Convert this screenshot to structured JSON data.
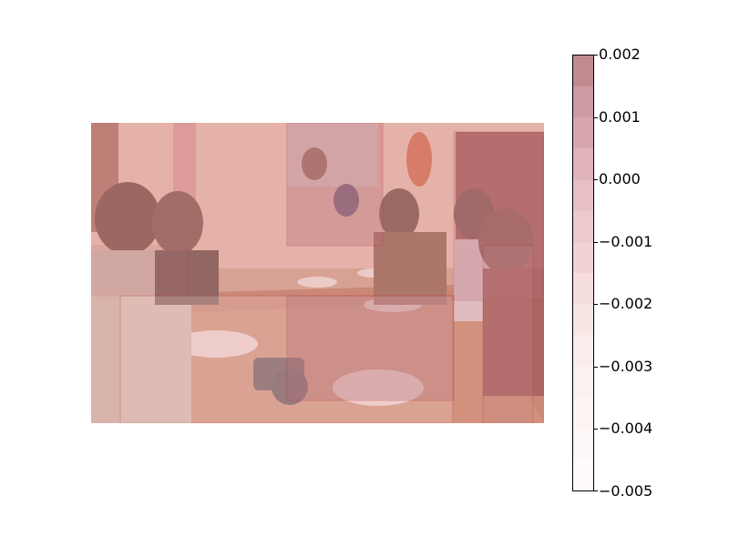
{
  "colorbar": {
    "ticks": [
      "0.002",
      "0.001",
      "0.000",
      "−0.001",
      "−0.002",
      "−0.003",
      "−0.004",
      "−0.005"
    ],
    "tick_values": [
      0.002,
      0.001,
      0.0,
      -0.001,
      -0.002,
      -0.003,
      -0.004,
      -0.005
    ],
    "range": [
      -0.005,
      0.002
    ],
    "steps": [
      "#c08a8f",
      "#cc9aa0",
      "#d7a7ad",
      "#e0b4b9",
      "#e8c0c4",
      "#edc9cc",
      "#f1d3d4",
      "#f5dddd",
      "#f7e6e4",
      "#f9ecea",
      "#fbf1ef",
      "#fcf5f3",
      "#fdf8f7",
      "#fefbfa"
    ]
  },
  "heatmap_overlay": {
    "cell_fill_levels": [
      0.95,
      0.6,
      0.5,
      0.8,
      0.2,
      0.35
    ]
  }
}
